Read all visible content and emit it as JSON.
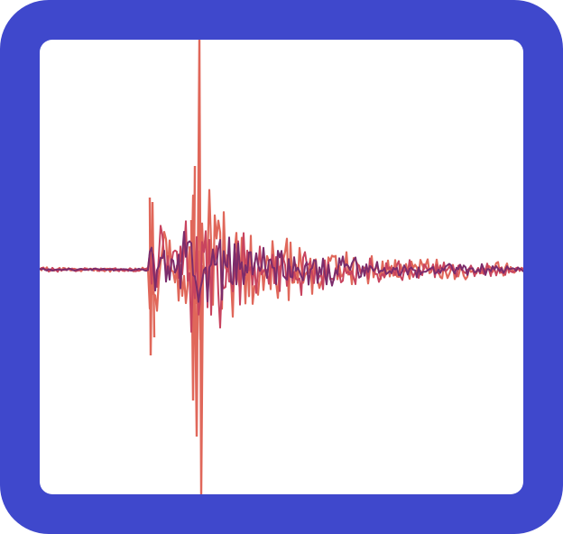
{
  "icon": {
    "name": "seismograph-waveform-icon",
    "frame_color": "#3f48cc",
    "screen_color": "#ffffff",
    "trace_colors": {
      "primary": "#e0675a",
      "secondary": "#c8445f",
      "tertiary": "#7b2c6b"
    }
  }
}
